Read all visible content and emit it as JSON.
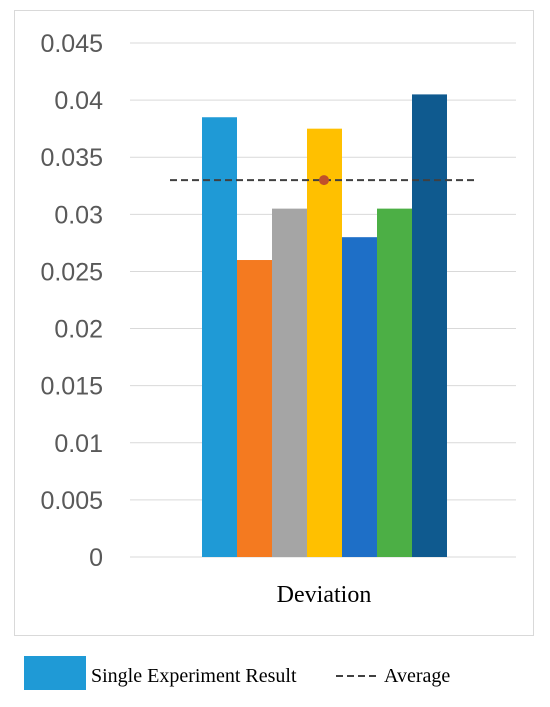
{
  "chart_data": {
    "type": "bar",
    "categories": [
      "Deviation"
    ],
    "series": [
      {
        "name": "Single Experiment Result",
        "values": [
          0.0385
        ],
        "color": "#1f9ad6"
      },
      {
        "values": [
          0.026
        ],
        "color": "#f47a20"
      },
      {
        "values": [
          0.0305
        ],
        "color": "#a5a5a5"
      },
      {
        "values": [
          0.0375
        ],
        "color": "#ffc000"
      },
      {
        "values": [
          0.028
        ],
        "color": "#1e6fc7"
      },
      {
        "values": [
          0.0305
        ],
        "color": "#4caf45"
      },
      {
        "values": [
          0.0405
        ],
        "color": "#0f5a8f"
      }
    ],
    "average": {
      "name": "Average",
      "value": 0.033,
      "color": "#404040",
      "marker_color": "#c0502a"
    },
    "ylim": [
      0,
      0.045
    ],
    "yticks": [
      "0",
      "0.005",
      "0.01",
      "0.015",
      "0.02",
      "0.025",
      "0.03",
      "0.035",
      "0.04",
      "0.045"
    ],
    "grid": true,
    "legend_position": "bottom-left",
    "legend": {
      "bar_label": "Single Experiment Result",
      "line_label": "Average"
    }
  }
}
